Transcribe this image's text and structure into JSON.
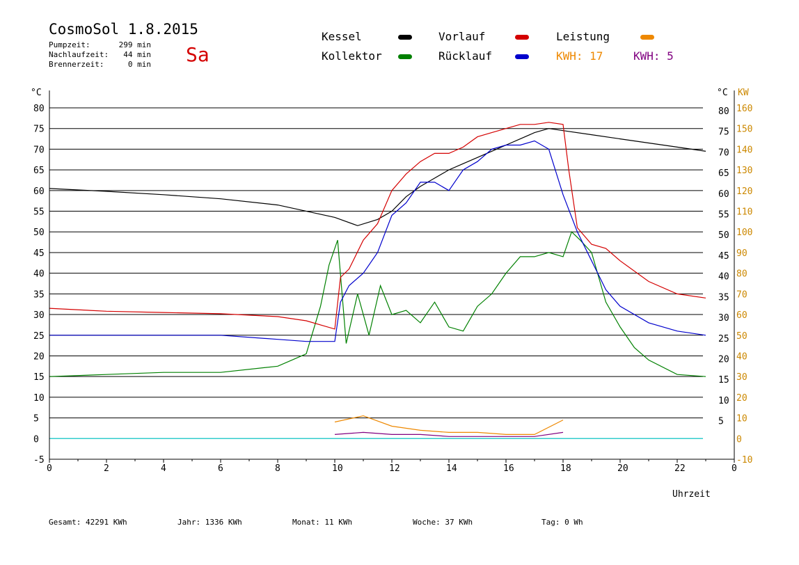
{
  "header": {
    "title": "CosmoSol 1.8.2015",
    "day": "Sa",
    "stats": [
      {
        "label": "Pumpzeit:",
        "value": "299 min"
      },
      {
        "label": "Nachlaufzeit:",
        "value": "44 min"
      },
      {
        "label": "Brennerzeit:",
        "value": "0 min"
      }
    ]
  },
  "legend": {
    "kessel": "Kessel",
    "kollektor": "Kollektor",
    "vorlauf": "Vorlauf",
    "ruecklauf": "Rücklauf",
    "leistung": "Leistung",
    "kwh1": "KWH: 17",
    "kwh2": "KWH: 5"
  },
  "footer": {
    "gesamt": "Gesamt:  42291 KWh",
    "jahr": "Jahr:  1336 KWh",
    "monat": "Monat:    11 KWh",
    "woche": "Woche:    37 KWh",
    "tag": "Tag:     0 Wh"
  },
  "colors": {
    "kessel": "#000000",
    "kollektor": "#008000",
    "vorlauf": "#d40000",
    "ruecklauf": "#0000cc",
    "leistung": "#ee8800",
    "kwh2": "#800080",
    "zero": "#33cccc",
    "axis_right": "#cc8800"
  },
  "chart_data": {
    "type": "line",
    "title": "",
    "xlabel": "Uhrzeit",
    "ylabel_left": "°C",
    "ylabel_right_1": "°C",
    "ylabel_right_2": "KW",
    "xlim": [
      0,
      24
    ],
    "ylim": [
      -5,
      80
    ],
    "x_ticks": [
      "0",
      "2",
      "4",
      "6",
      "8",
      "10",
      "12",
      "14",
      "16",
      "18",
      "20",
      "22",
      "0"
    ],
    "y_ticks_left": [
      "80",
      "75",
      "70",
      "65",
      "60",
      "55",
      "50",
      "45",
      "40",
      "35",
      "30",
      "25",
      "20",
      "15",
      "10",
      "5",
      "0",
      "-5"
    ],
    "y_ticks_right_temp": [
      "80",
      "75",
      "70",
      "65",
      "60",
      "55",
      "50",
      "45",
      "40",
      "35",
      "30",
      "25",
      "20",
      "15",
      "10",
      "5"
    ],
    "y_ticks_right_kw": [
      "160",
      "150",
      "140",
      "130",
      "120",
      "110",
      "100",
      "90",
      "80",
      "70",
      "60",
      "50",
      "40",
      "30",
      "20",
      "10",
      "0",
      "-10"
    ],
    "grid": true,
    "series": [
      {
        "name": "Kessel",
        "x": [
          0,
          2,
          4,
          6,
          8,
          10,
          10.8,
          11.5,
          12,
          12.5,
          13,
          13.5,
          14,
          14.5,
          15,
          15.5,
          16,
          16.5,
          17,
          17.5,
          18,
          19,
          20,
          21,
          22,
          23
        ],
        "values": [
          60.5,
          59.8,
          59,
          58,
          56.5,
          53.5,
          51.5,
          53,
          55,
          58.5,
          61,
          63,
          65,
          66.5,
          68,
          69.5,
          71,
          72.5,
          74,
          75,
          74.5,
          73.5,
          72.5,
          71.5,
          70.5,
          69.5
        ]
      },
      {
        "name": "Kollektor",
        "x": [
          0,
          2,
          4,
          6,
          8,
          8.5,
          9,
          9.5,
          9.8,
          10.1,
          10.4,
          10.8,
          11.2,
          11.6,
          12,
          12.5,
          13,
          13.5,
          14,
          14.5,
          15,
          15.5,
          16,
          16.5,
          17,
          17.5,
          18,
          18.3,
          18.6,
          19,
          19.5,
          20,
          20.5,
          21,
          22,
          23
        ],
        "values": [
          15,
          15.5,
          16,
          16,
          17.5,
          19,
          20.5,
          32,
          42,
          48,
          23,
          35,
          25,
          37,
          30,
          31,
          28,
          33,
          27,
          26,
          32,
          35,
          40,
          44,
          44,
          45,
          44,
          50,
          48,
          45,
          33,
          27,
          22,
          19,
          15.5,
          15
        ]
      },
      {
        "name": "Vorlauf",
        "x": [
          0,
          2,
          4,
          6,
          8,
          9,
          10,
          10.2,
          10.5,
          11,
          11.5,
          12,
          12.5,
          13,
          13.5,
          14,
          14.5,
          15,
          15.5,
          16,
          16.5,
          17,
          17.5,
          18,
          18.2,
          18.5,
          19,
          19.5,
          20,
          21,
          22,
          23
        ],
        "values": [
          31.5,
          30.8,
          30.5,
          30.2,
          29.5,
          28.5,
          26.5,
          39,
          41,
          48,
          52,
          60,
          64,
          67,
          69,
          69,
          70.5,
          73,
          74,
          75,
          76,
          76,
          76.5,
          76,
          65,
          51,
          47,
          46,
          43,
          38,
          35,
          34
        ]
      },
      {
        "name": "Rücklauf",
        "x": [
          0,
          2,
          4,
          6,
          8,
          9,
          10,
          10.2,
          10.5,
          11,
          11.5,
          12,
          12.5,
          13,
          13.5,
          14,
          14.5,
          15,
          15.5,
          16,
          16.5,
          17,
          17.5,
          18,
          18.5,
          19,
          19.5,
          20,
          21,
          22,
          23
        ],
        "values": [
          25,
          25,
          25,
          25,
          24,
          23.5,
          23.5,
          33,
          37,
          40,
          45,
          54,
          57,
          62,
          62,
          60,
          65,
          67,
          70,
          71,
          71,
          72,
          70,
          59,
          50,
          43,
          36,
          32,
          28,
          26,
          25
        ]
      },
      {
        "name": "Leistung",
        "x": [
          10,
          11,
          12,
          13,
          14,
          15,
          16,
          17,
          18
        ],
        "values": [
          8,
          11,
          6,
          4,
          3,
          3,
          2,
          2,
          9
        ]
      },
      {
        "name": "KWH: 5",
        "x": [
          10,
          11,
          12,
          13,
          14,
          15,
          16,
          17,
          18
        ],
        "values": [
          2,
          3,
          2,
          2,
          1,
          1,
          1,
          1,
          3
        ]
      }
    ]
  }
}
